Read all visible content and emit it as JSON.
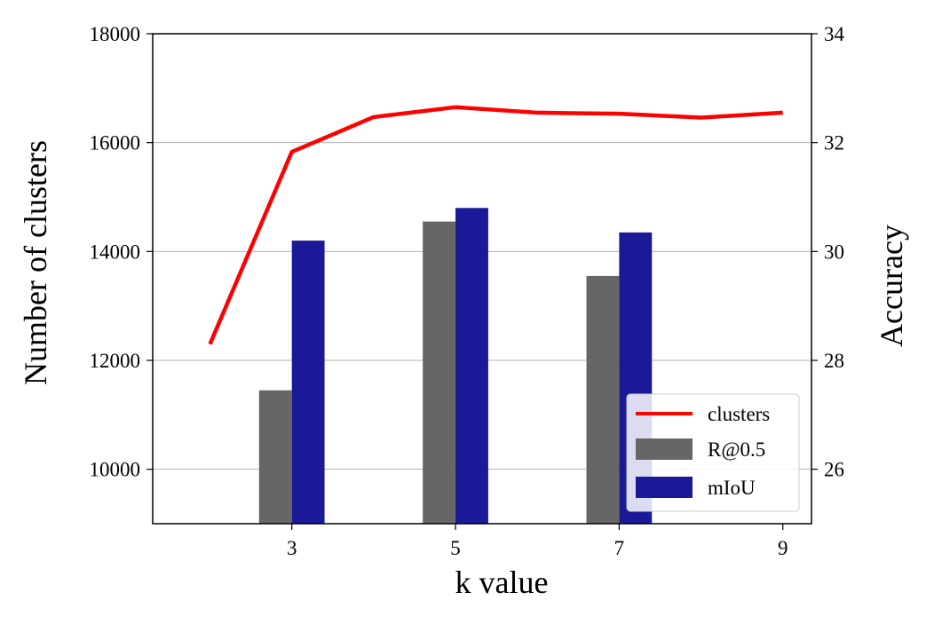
{
  "chart_data": {
    "type": "bar",
    "title": "",
    "xlabel": "k value",
    "ylabel": "Number of clusters",
    "y2label": "Accuracy",
    "xticks": [
      3,
      5,
      7,
      9
    ],
    "xlim": [
      1.3,
      9.35
    ],
    "ylim": [
      9000,
      18000
    ],
    "y2lim": [
      25,
      34
    ],
    "yticks": [
      "10000",
      "12000",
      "14000",
      "16000",
      "18000"
    ],
    "y2ticks": [
      "26",
      "28",
      "30",
      "32",
      "34"
    ],
    "grid": "horizontal",
    "legend_position": "lower-right",
    "line_series": {
      "name": "clusters",
      "axis": "left",
      "color": "#ff0000",
      "x": [
        2,
        3,
        4,
        5,
        6,
        7,
        8,
        9
      ],
      "values": [
        12300,
        15830,
        16470,
        16650,
        16550,
        16530,
        16460,
        16550
      ]
    },
    "bar_categories": [
      3,
      5,
      7
    ],
    "series": [
      {
        "name": "R@0.5",
        "axis": "right",
        "color": "#666666",
        "values": [
          27.45,
          30.55,
          29.55
        ]
      },
      {
        "name": "mIoU",
        "axis": "right",
        "color": "#1a1a99",
        "values": [
          30.2,
          30.8,
          30.35
        ]
      }
    ]
  }
}
